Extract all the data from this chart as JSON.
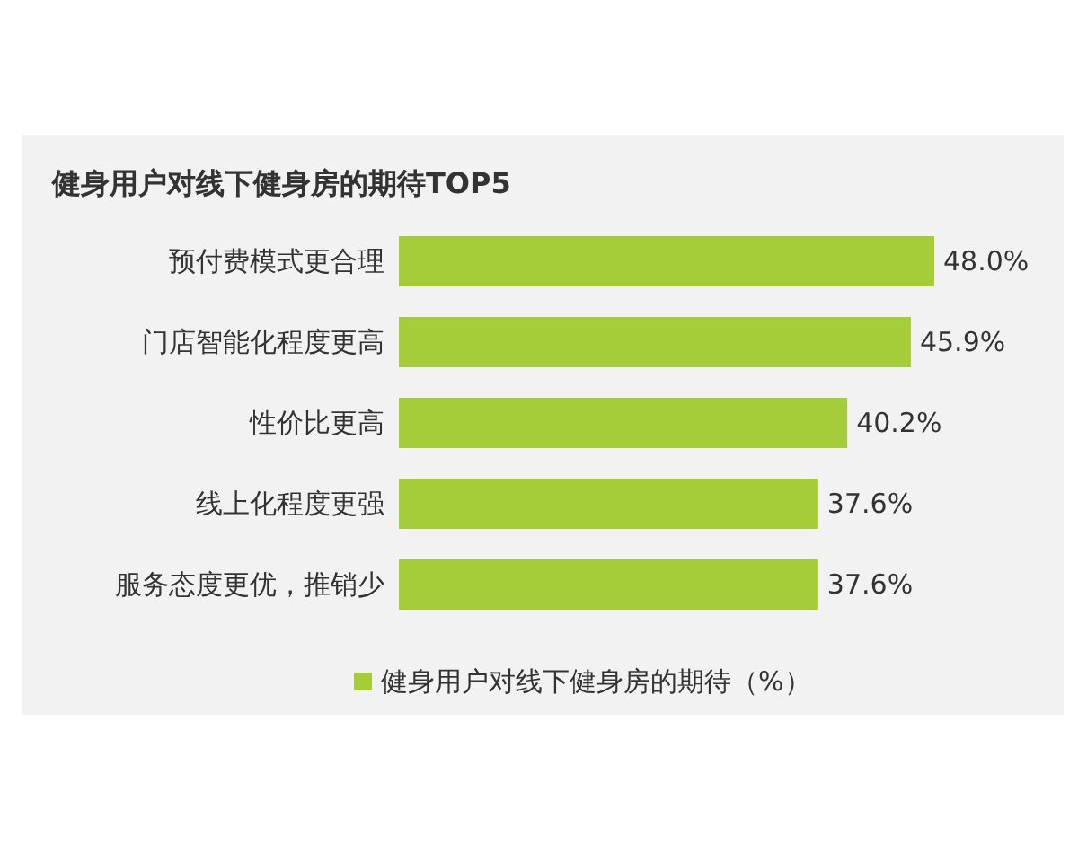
{
  "chart_data": {
    "type": "bar",
    "orientation": "horizontal",
    "title": "健身用户对线下健身房的期待TOP5",
    "categories": [
      "预付费模式更合理",
      "门店智能化程度更高",
      "性价比更高",
      "线上化程度更强",
      "服务态度更优，推销少"
    ],
    "series": [
      {
        "name": "健身用户对线下健身房的期待（%）",
        "color": "#a5cd39",
        "values": [
          48.0,
          45.9,
          40.2,
          37.6,
          37.6
        ],
        "value_labels": [
          "48.0%",
          "45.9%",
          "40.2%",
          "37.6%",
          "37.6%"
        ]
      }
    ],
    "legend": "bottom"
  }
}
